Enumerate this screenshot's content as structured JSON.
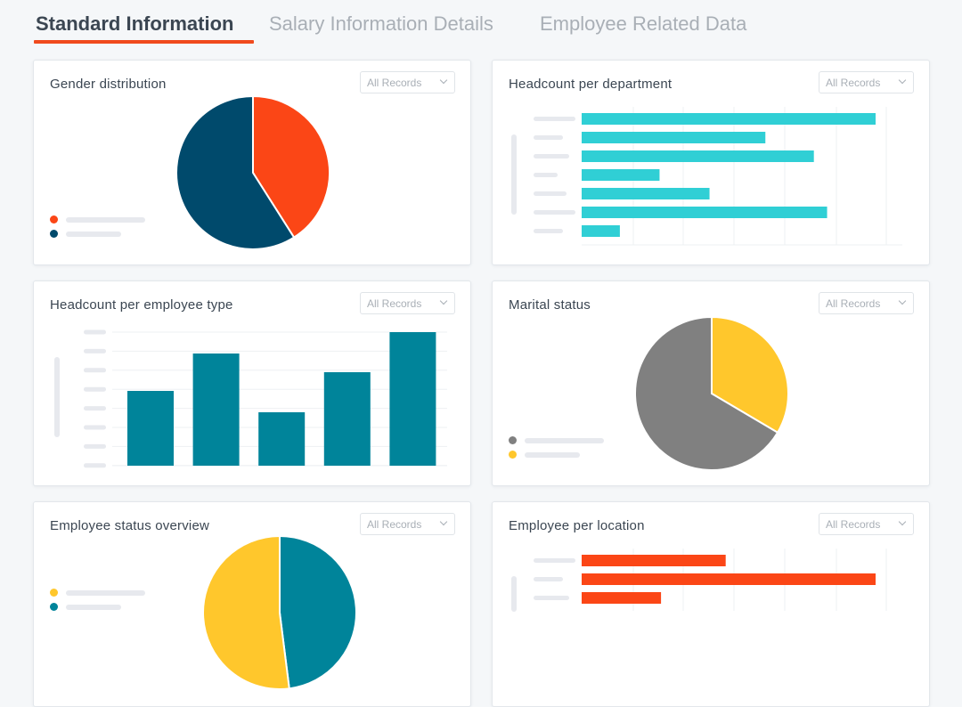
{
  "tabs": [
    {
      "label": "Standard Information",
      "active": true
    },
    {
      "label": "Salary Information Details",
      "active": false
    },
    {
      "label": "Employee Related Data",
      "active": false
    }
  ],
  "colors": {
    "accent": "#f04a1d",
    "orange": "#fb4616",
    "navy": "#004a6c",
    "cyan": "#30cfd5",
    "teal": "#00849a",
    "gray": "#808080",
    "yellow": "#ffc72c"
  },
  "filter_label": "All Records",
  "cards": {
    "gender": {
      "title": "Gender distribution"
    },
    "department": {
      "title": "Headcount per department"
    },
    "employee_type": {
      "title": "Headcount per employee type"
    },
    "marital": {
      "title": "Marital status"
    },
    "status": {
      "title": "Employee status overview"
    },
    "location": {
      "title": "Employee per location"
    }
  },
  "chart_data": [
    {
      "id": "gender",
      "type": "pie",
      "values": [
        41,
        59
      ],
      "colors": [
        "#fb4616",
        "#004a6c"
      ]
    },
    {
      "id": "department",
      "type": "bar",
      "orientation": "horizontal",
      "values": [
        100,
        62.5,
        79,
        26.5,
        43.5,
        83.5,
        13
      ],
      "color": "#30cfd5",
      "xlim": [
        0,
        100
      ]
    },
    {
      "id": "employee_type",
      "type": "bar",
      "orientation": "vertical",
      "values": [
        56,
        84,
        40,
        70,
        100
      ],
      "color": "#00849a",
      "ylim": [
        0,
        100
      ]
    },
    {
      "id": "marital",
      "type": "pie",
      "values": [
        33.5,
        66.5
      ],
      "colors": [
        "#ffc72c",
        "#808080"
      ]
    },
    {
      "id": "status",
      "type": "pie",
      "values": [
        48,
        52
      ],
      "colors": [
        "#00849a",
        "#ffc72c"
      ]
    },
    {
      "id": "location",
      "type": "bar",
      "orientation": "horizontal",
      "values": [
        49,
        100,
        27
      ],
      "color": "#fb4616",
      "xlim": [
        0,
        100
      ]
    }
  ]
}
